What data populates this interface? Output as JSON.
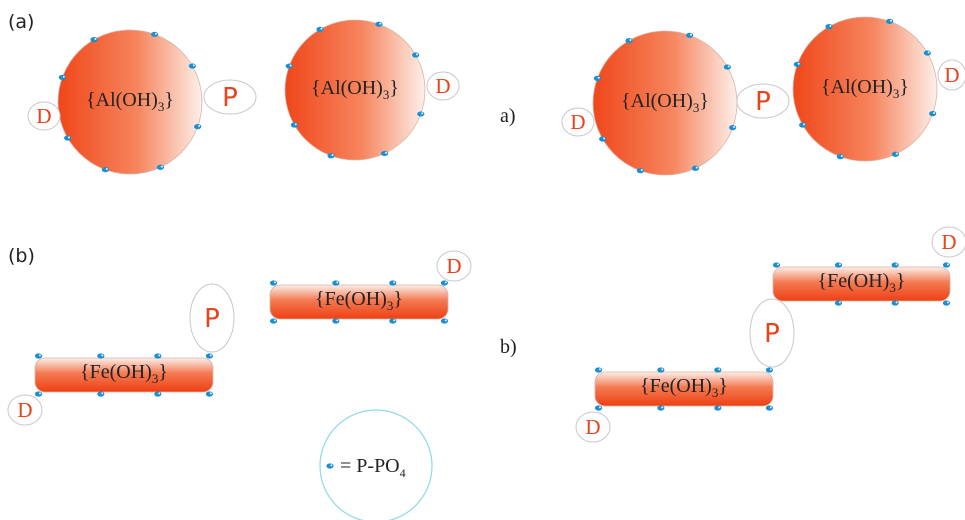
{
  "labels": {
    "top_left": "(a)",
    "bottom_left": "(b)",
    "top_right": "a)",
    "bottom_right": "b)"
  },
  "particles": [
    {
      "prefix": "{Al(OH)",
      "sub": "3",
      "suffix": "}"
    },
    {
      "prefix": "{Al(OH)",
      "sub": "3",
      "suffix": "}"
    },
    {
      "prefix": "{Al(OH)",
      "sub": "3",
      "suffix": "}"
    },
    {
      "prefix": "{Al(OH)",
      "sub": "3",
      "suffix": "}"
    },
    {
      "prefix": "{Fe(OH)",
      "sub": "3",
      "suffix": "}"
    },
    {
      "prefix": "{Fe(OH)",
      "sub": "3",
      "suffix": "}"
    },
    {
      "prefix": "{Fe(OH)",
      "sub": "3",
      "suffix": "}"
    },
    {
      "prefix": "{Fe(OH)",
      "sub": "3",
      "suffix": "}"
    }
  ],
  "ions": [
    "D",
    "P",
    "D",
    "D",
    "P",
    "D",
    "D",
    "P",
    "D",
    "D",
    "P",
    "D"
  ],
  "legend": {
    "prefix": "= P-PO",
    "sub": "4"
  }
}
